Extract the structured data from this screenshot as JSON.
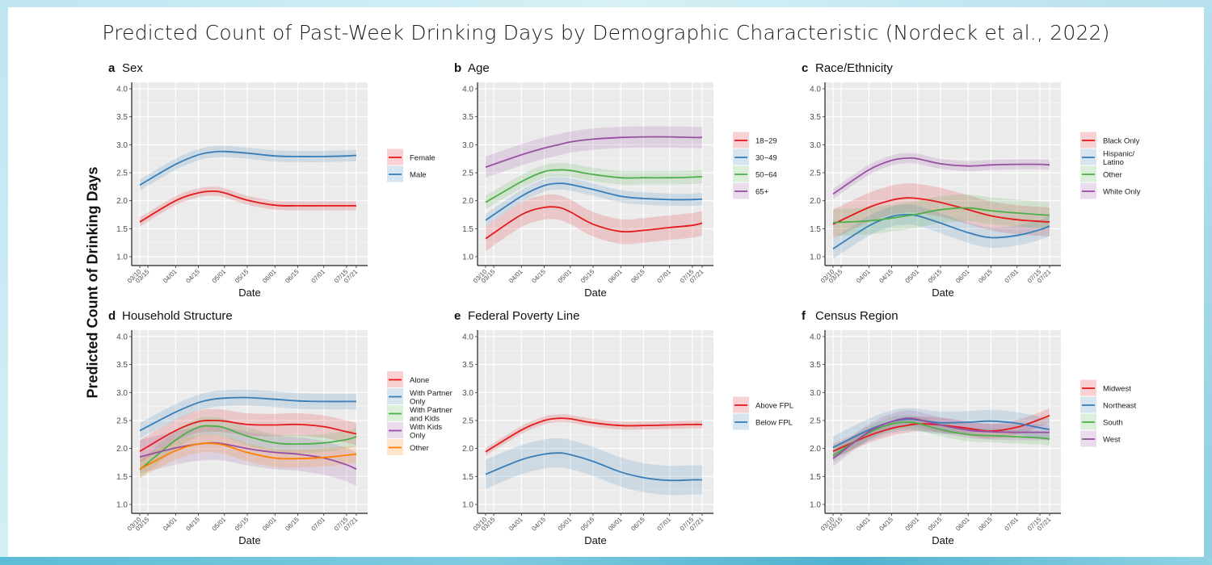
{
  "figure": {
    "title": "Predicted Count of Past-Week Drinking Days by Demographic Characteristic (Nordeck et al., 2022)",
    "shared_ylabel": "Predicted Count of Drinking Days"
  },
  "chart_data": [
    {
      "type": "line",
      "panel": "a",
      "title": "Sex",
      "xlabel": "Date",
      "ylabel": "Predicted Count of Drinking Days",
      "ylim": [
        1.0,
        4.0
      ],
      "yticks": [
        "1.0",
        "1.5",
        "2.0",
        "2.5",
        "3.0",
        "3.5",
        "4.0"
      ],
      "x_tick_labels": [
        "03/10",
        "03/15",
        "04/01",
        "04/15",
        "05/01",
        "05/15",
        "06/01",
        "06/15",
        "07/01",
        "07/15",
        "07/21"
      ],
      "x_tick_days": [
        0,
        5,
        22,
        36,
        52,
        66,
        83,
        97,
        113,
        127,
        133
      ],
      "x": [
        0,
        22,
        36,
        45,
        52,
        66,
        83,
        97,
        113,
        127,
        133
      ],
      "grid": true,
      "legend_position": "right",
      "series": [
        {
          "name": "Female",
          "color": "#e41a1c",
          "values": [
            1.62,
            2.0,
            2.14,
            2.17,
            2.14,
            2.01,
            1.92,
            1.91,
            1.91,
            1.91,
            1.91
          ],
          "ci": 0.08
        },
        {
          "name": "Male",
          "color": "#377eb8",
          "values": [
            2.28,
            2.65,
            2.82,
            2.87,
            2.88,
            2.85,
            2.8,
            2.79,
            2.79,
            2.8,
            2.81
          ],
          "ci": 0.1
        }
      ]
    },
    {
      "type": "line",
      "panel": "b",
      "title": "Age",
      "xlabel": "Date",
      "ylim": [
        1.0,
        4.0
      ],
      "yticks": [
        "1.0",
        "1.5",
        "2.0",
        "2.5",
        "3.0",
        "3.5",
        "4.0"
      ],
      "x_tick_labels": [
        "03/10",
        "03/15",
        "04/01",
        "04/15",
        "05/01",
        "05/15",
        "06/01",
        "06/15",
        "07/01",
        "07/15",
        "07/21"
      ],
      "x_tick_days": [
        0,
        5,
        22,
        36,
        52,
        66,
        83,
        97,
        113,
        127,
        133
      ],
      "x": [
        0,
        22,
        36,
        45,
        52,
        66,
        83,
        97,
        113,
        127,
        133
      ],
      "grid": true,
      "legend_position": "right",
      "series": [
        {
          "name": "18−29",
          "color": "#e41a1c",
          "values": [
            1.32,
            1.75,
            1.88,
            1.88,
            1.8,
            1.58,
            1.45,
            1.47,
            1.52,
            1.56,
            1.6
          ],
          "ci": 0.22
        },
        {
          "name": "30−49",
          "color": "#377eb8",
          "values": [
            1.65,
            2.08,
            2.27,
            2.31,
            2.29,
            2.2,
            2.08,
            2.04,
            2.02,
            2.02,
            2.03
          ],
          "ci": 0.11
        },
        {
          "name": "50−64",
          "color": "#4daf4a",
          "values": [
            1.97,
            2.34,
            2.52,
            2.55,
            2.54,
            2.47,
            2.41,
            2.41,
            2.41,
            2.42,
            2.43
          ],
          "ci": 0.12
        },
        {
          "name": "65+",
          "color": "#984ea3",
          "values": [
            2.6,
            2.82,
            2.94,
            3.0,
            3.05,
            3.1,
            3.13,
            3.14,
            3.14,
            3.13,
            3.13
          ],
          "ci": 0.19
        }
      ]
    },
    {
      "type": "line",
      "panel": "c",
      "title": "Race/Ethnicity",
      "xlabel": "Date",
      "ylim": [
        1.0,
        4.0
      ],
      "yticks": [
        "1.0",
        "1.5",
        "2.0",
        "2.5",
        "3.0",
        "3.5",
        "4.0"
      ],
      "x_tick_labels": [
        "03/10",
        "03/15",
        "04/01",
        "04/15",
        "05/01",
        "05/15",
        "06/01",
        "06/15",
        "07/01",
        "07/15",
        "07/21"
      ],
      "x_tick_days": [
        0,
        5,
        22,
        36,
        52,
        66,
        83,
        97,
        113,
        127,
        133
      ],
      "x": [
        0,
        22,
        36,
        45,
        52,
        66,
        83,
        97,
        113,
        127,
        133
      ],
      "grid": true,
      "legend_position": "right",
      "series": [
        {
          "name": "Black Only",
          "color": "#e41a1c",
          "values": [
            1.58,
            1.88,
            2.01,
            2.05,
            2.04,
            1.97,
            1.84,
            1.73,
            1.66,
            1.63,
            1.62
          ],
          "ci": 0.26
        },
        {
          "name": "Hispanic/\nLatino",
          "color": "#377eb8",
          "values": [
            1.14,
            1.55,
            1.72,
            1.75,
            1.73,
            1.6,
            1.43,
            1.34,
            1.38,
            1.48,
            1.55
          ],
          "ci": 0.18
        },
        {
          "name": "Other",
          "color": "#4daf4a",
          "values": [
            1.61,
            1.64,
            1.69,
            1.73,
            1.76,
            1.84,
            1.87,
            1.82,
            1.78,
            1.75,
            1.74
          ],
          "ci": 0.24
        },
        {
          "name": "White Only",
          "color": "#984ea3",
          "values": [
            2.12,
            2.55,
            2.72,
            2.76,
            2.75,
            2.66,
            2.62,
            2.64,
            2.65,
            2.65,
            2.64
          ],
          "ci": 0.09
        }
      ]
    },
    {
      "type": "line",
      "panel": "d",
      "title": "Household Structure",
      "xlabel": "Date",
      "ylim": [
        1.0,
        4.0
      ],
      "yticks": [
        "1.0",
        "1.5",
        "2.0",
        "2.5",
        "3.0",
        "3.5",
        "4.0"
      ],
      "x_tick_labels": [
        "03/10",
        "03/15",
        "04/01",
        "04/15",
        "05/01",
        "05/15",
        "06/01",
        "06/15",
        "07/01",
        "07/15",
        "07/21"
      ],
      "x_tick_days": [
        0,
        5,
        22,
        36,
        52,
        66,
        83,
        97,
        113,
        127,
        133
      ],
      "x": [
        0,
        22,
        36,
        45,
        52,
        66,
        83,
        97,
        113,
        127,
        133
      ],
      "grid": true,
      "legend_position": "right",
      "series": [
        {
          "name": "Alone",
          "color": "#e41a1c",
          "values": [
            1.95,
            2.32,
            2.48,
            2.5,
            2.49,
            2.43,
            2.42,
            2.43,
            2.39,
            2.3,
            2.26
          ],
          "ci": 0.2
        },
        {
          "name": "With Partner\nOnly",
          "color": "#377eb8",
          "values": [
            2.32,
            2.65,
            2.82,
            2.88,
            2.9,
            2.91,
            2.88,
            2.85,
            2.84,
            2.84,
            2.84
          ],
          "ci": 0.14
        },
        {
          "name": "With Partner\nand Kids",
          "color": "#4daf4a",
          "values": [
            1.62,
            2.15,
            2.38,
            2.4,
            2.37,
            2.22,
            2.1,
            2.08,
            2.1,
            2.16,
            2.21
          ],
          "ci": 0.16
        },
        {
          "name": "With Kids\nOnly",
          "color": "#984ea3",
          "values": [
            1.85,
            2.01,
            2.08,
            2.1,
            2.08,
            2.0,
            1.93,
            1.9,
            1.83,
            1.71,
            1.63
          ],
          "ci": 0.3
        },
        {
          "name": "Other",
          "color": "#ff7f00",
          "values": [
            1.63,
            1.96,
            2.08,
            2.09,
            2.06,
            1.93,
            1.83,
            1.82,
            1.84,
            1.88,
            1.9
          ],
          "ci": 0.16
        }
      ]
    },
    {
      "type": "line",
      "panel": "e",
      "title": "Federal Poverty Line",
      "xlabel": "Date",
      "ylim": [
        1.0,
        4.0
      ],
      "yticks": [
        "1.0",
        "1.5",
        "2.0",
        "2.5",
        "3.0",
        "3.5",
        "4.0"
      ],
      "x_tick_labels": [
        "03/10",
        "03/15",
        "04/01",
        "04/15",
        "05/01",
        "05/15",
        "06/01",
        "06/15",
        "07/01",
        "07/15",
        "07/21"
      ],
      "x_tick_days": [
        0,
        5,
        22,
        36,
        52,
        66,
        83,
        97,
        113,
        127,
        133
      ],
      "x": [
        0,
        22,
        36,
        45,
        52,
        66,
        83,
        97,
        113,
        127,
        133
      ],
      "grid": true,
      "legend_position": "right",
      "series": [
        {
          "name": "Above FPL",
          "color": "#e41a1c",
          "values": [
            1.94,
            2.33,
            2.5,
            2.54,
            2.53,
            2.46,
            2.41,
            2.41,
            2.42,
            2.43,
            2.43
          ],
          "ci": 0.07
        },
        {
          "name": "Below FPL",
          "color": "#377eb8",
          "values": [
            1.54,
            1.8,
            1.9,
            1.92,
            1.89,
            1.77,
            1.58,
            1.48,
            1.43,
            1.44,
            1.44
          ],
          "ci": 0.26
        }
      ]
    },
    {
      "type": "line",
      "panel": "f",
      "title": "Census Region",
      "xlabel": "Date",
      "ylim": [
        1.0,
        4.0
      ],
      "yticks": [
        "1.0",
        "1.5",
        "2.0",
        "2.5",
        "3.0",
        "3.5",
        "4.0"
      ],
      "x_tick_labels": [
        "03/10",
        "03/15",
        "04/01",
        "04/15",
        "05/01",
        "05/15",
        "06/01",
        "06/15",
        "07/01",
        "07/15",
        "07/21"
      ],
      "x_tick_days": [
        0,
        5,
        22,
        36,
        52,
        66,
        83,
        97,
        113,
        127,
        133
      ],
      "x": [
        0,
        22,
        36,
        45,
        52,
        66,
        83,
        97,
        113,
        127,
        133
      ],
      "grid": true,
      "legend_position": "right",
      "series": [
        {
          "name": "Midwest",
          "color": "#e41a1c",
          "values": [
            1.95,
            2.23,
            2.36,
            2.41,
            2.44,
            2.42,
            2.36,
            2.31,
            2.38,
            2.52,
            2.59
          ],
          "ci": 0.13
        },
        {
          "name": "Northeast",
          "color": "#377eb8",
          "values": [
            2.02,
            2.33,
            2.48,
            2.52,
            2.51,
            2.46,
            2.47,
            2.49,
            2.45,
            2.37,
            2.34
          ],
          "ci": 0.2
        },
        {
          "name": "South",
          "color": "#4daf4a",
          "values": [
            1.87,
            2.28,
            2.44,
            2.47,
            2.45,
            2.34,
            2.25,
            2.23,
            2.21,
            2.19,
            2.17
          ],
          "ci": 0.12
        },
        {
          "name": "West",
          "color": "#984ea3",
          "values": [
            1.82,
            2.3,
            2.48,
            2.54,
            2.52,
            2.42,
            2.33,
            2.3,
            2.29,
            2.29,
            2.29
          ],
          "ci": 0.14
        }
      ]
    }
  ]
}
